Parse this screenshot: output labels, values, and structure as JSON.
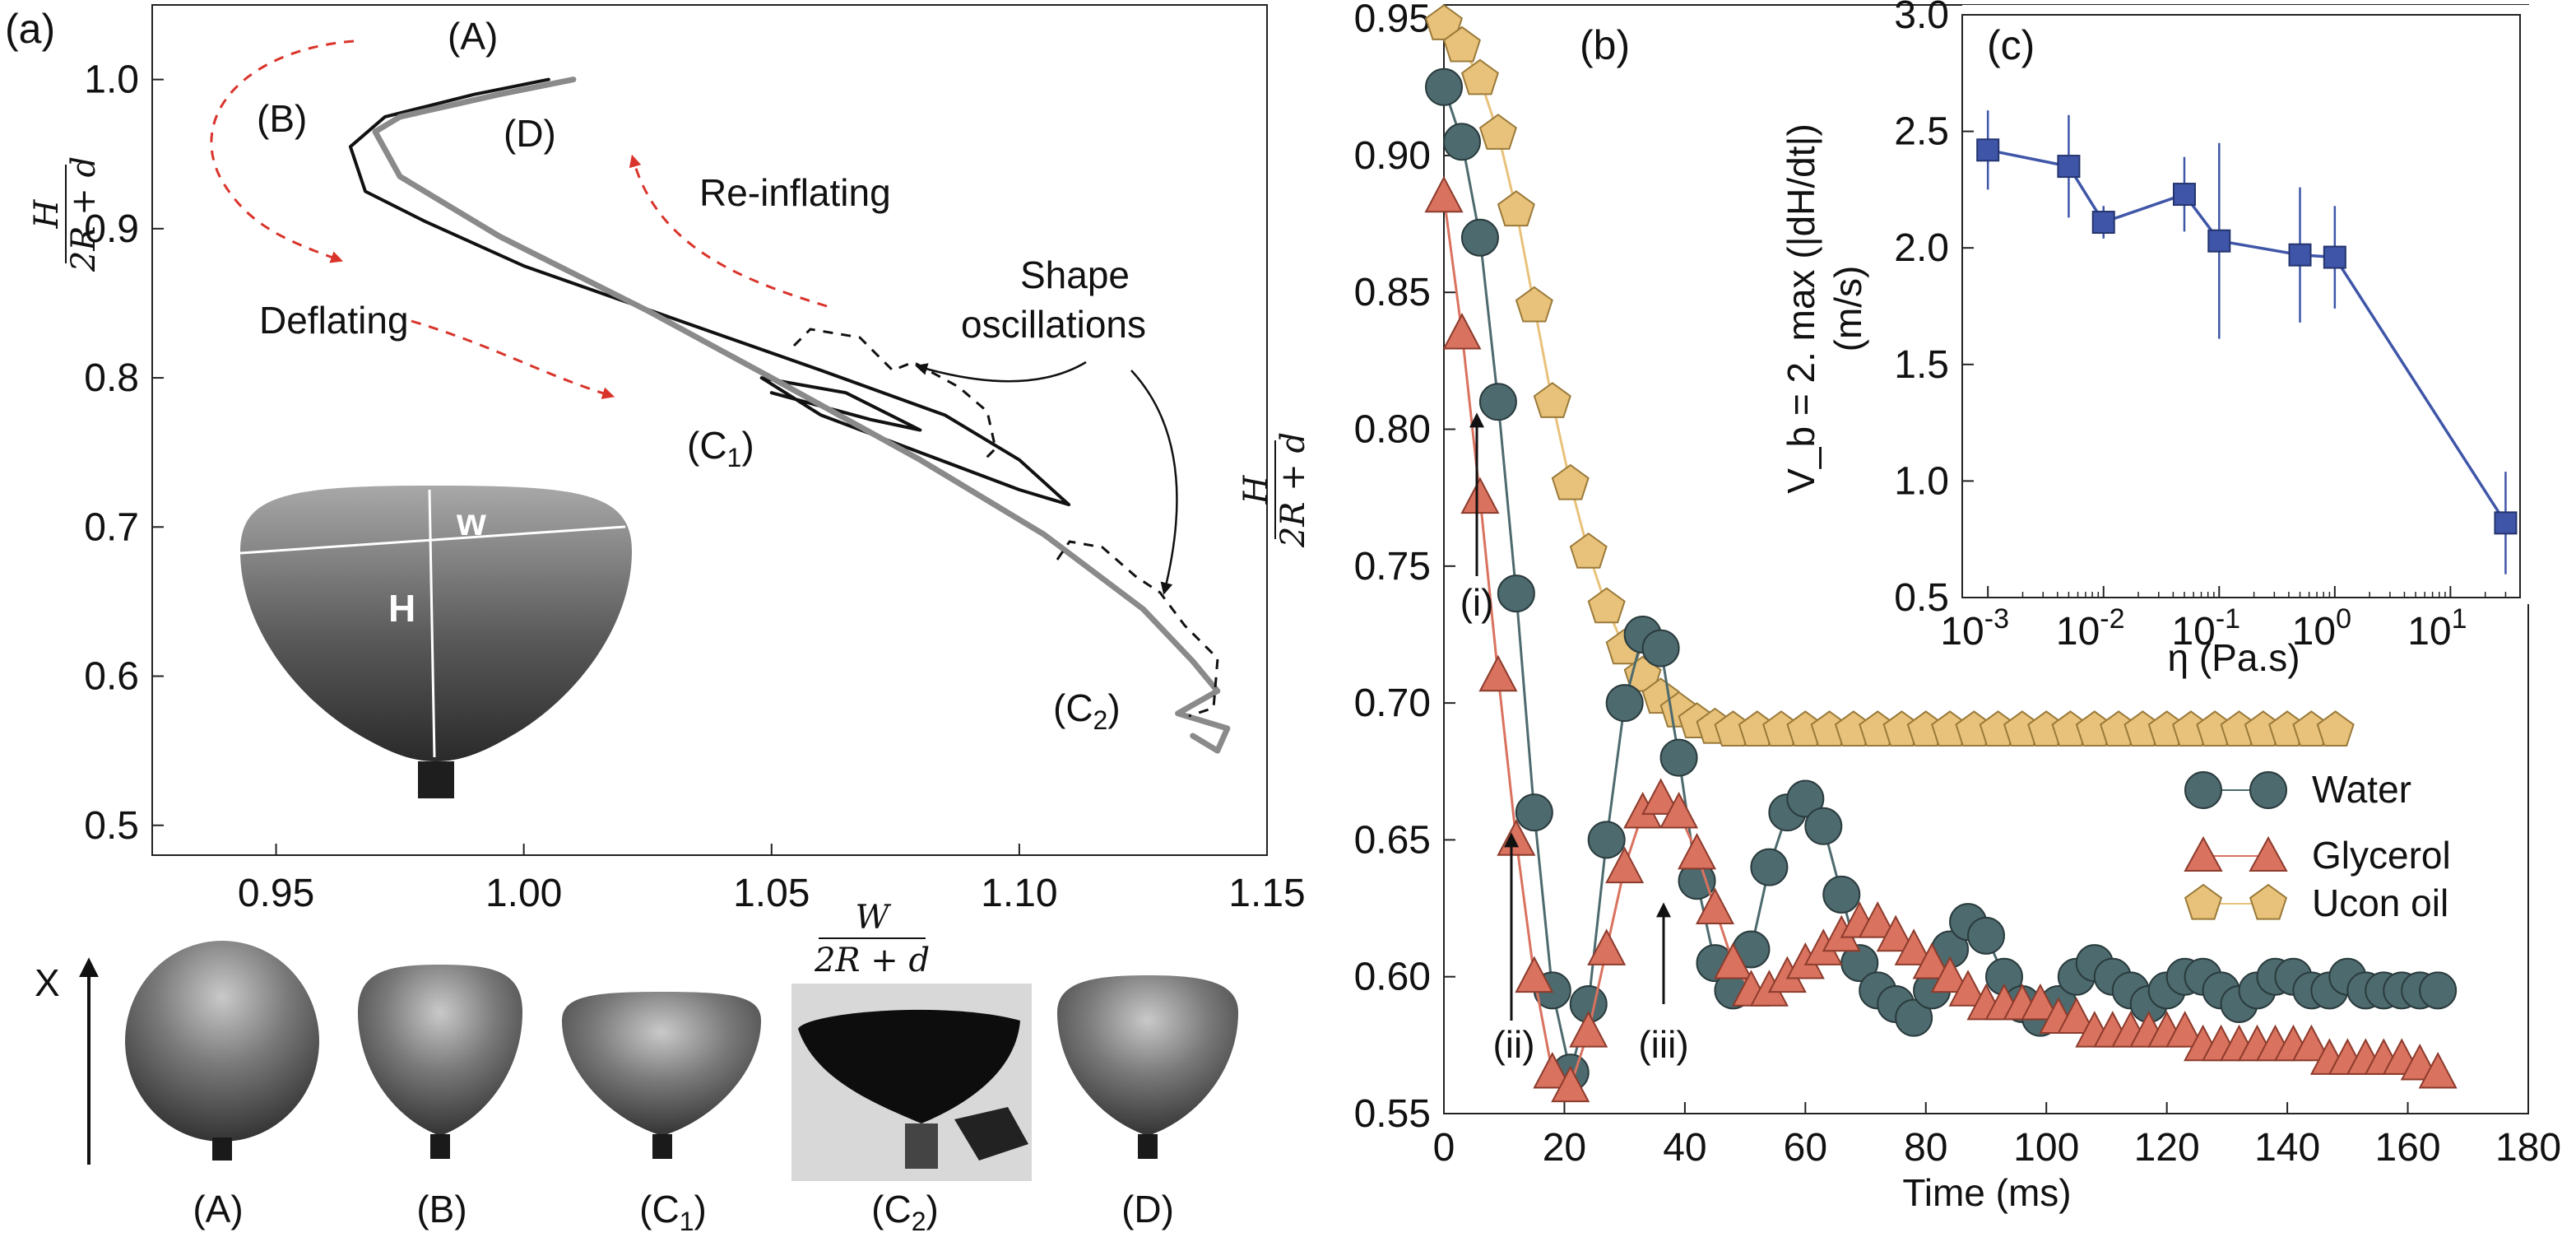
{
  "figure": {
    "panel_a_label": "(a)",
    "panel_b_label": "(b)",
    "panel_c_label": "(c)",
    "bottom_labels": [
      "(A)",
      "(B)",
      "(C1)",
      "(C2)",
      "(D)"
    ],
    "x_arrow_label": "X",
    "ratio_label_W": "W",
    "ratio_label_den": "2R + d"
  },
  "chart_data": [
    {
      "id": "a",
      "type": "line",
      "title": "",
      "xlabel": "W/(2R+d)",
      "ylabel": "H/(2R+d)",
      "xlim": [
        0.925,
        1.15
      ],
      "ylim": [
        0.48,
        1.05
      ],
      "xticks": [
        0.95,
        1.0,
        1.05,
        1.1,
        1.15
      ],
      "xtick_labels": [
        "0.95",
        "1.00",
        "1.05",
        "1.10",
        "1.15"
      ],
      "yticks": [
        0.5,
        0.6,
        0.7,
        0.8,
        0.9,
        1.0
      ],
      "ytick_labels": [
        "0.5",
        "0.6",
        "0.7",
        "0.8",
        "0.9",
        "1.0"
      ],
      "ylabel_num": "H",
      "ylabel_den": "2R + d",
      "annotations": {
        "A": "(A)",
        "B": "(B)",
        "D": "(D)",
        "C1": "(C1)",
        "C2": "(C2)",
        "deflating": "Deflating",
        "reinflating": "Re-inflating",
        "shape_osc_1": "Shape",
        "shape_osc_2": "oscillations",
        "inset_w": "w",
        "inset_H": "H"
      },
      "series": [
        {
          "name": "Water (black)",
          "color": "#111111",
          "x": [
            1.005,
            0.99,
            0.972,
            0.965,
            0.968,
            0.98,
            1.0,
            1.03,
            1.06,
            1.085,
            1.1,
            1.11,
            1.1,
            1.08,
            1.06,
            1.048,
            1.065,
            1.08,
            1.07,
            1.05
          ],
          "y": [
            1.0,
            0.99,
            0.975,
            0.955,
            0.925,
            0.905,
            0.875,
            0.84,
            0.805,
            0.775,
            0.745,
            0.715,
            0.725,
            0.75,
            0.775,
            0.8,
            0.79,
            0.765,
            0.772,
            0.79
          ]
        },
        {
          "name": "Glycerol (gray)",
          "color": "#8a8a8a",
          "x": [
            1.01,
            0.995,
            0.975,
            0.97,
            0.975,
            0.995,
            1.025,
            1.05,
            1.08,
            1.105,
            1.125,
            1.135,
            1.14,
            1.132,
            1.142,
            1.14,
            1.135
          ],
          "y": [
            1.0,
            0.99,
            0.975,
            0.965,
            0.935,
            0.895,
            0.845,
            0.8,
            0.745,
            0.695,
            0.645,
            0.61,
            0.59,
            0.575,
            0.565,
            0.55,
            0.56
          ]
        }
      ]
    },
    {
      "id": "b",
      "type": "line",
      "title": "",
      "xlabel": "Time (ms)",
      "ylabel": "H/(2R+d)",
      "xlim": [
        0,
        180
      ],
      "ylim": [
        0.55,
        0.955
      ],
      "xticks": [
        0,
        20,
        40,
        60,
        80,
        100,
        120,
        140,
        160,
        180
      ],
      "xtick_labels": [
        "0",
        "20",
        "40",
        "60",
        "80",
        "100",
        "120",
        "140",
        "160",
        "180"
      ],
      "yticks": [
        0.55,
        0.6,
        0.65,
        0.7,
        0.75,
        0.8,
        0.85,
        0.9,
        0.95
      ],
      "ytick_labels": [
        "0.55",
        "0.60",
        "0.65",
        "0.70",
        "0.75",
        "0.80",
        "0.85",
        "0.90",
        "0.95"
      ],
      "ylabel_num": "H",
      "ylabel_den": "2R + d",
      "legend": [
        "Water",
        "Glycerol",
        "Ucon oil"
      ],
      "arrow_labels": [
        "(i)",
        "(ii)",
        "(iii)"
      ],
      "series": [
        {
          "name": "Water",
          "marker": "circle",
          "color": "#4d6a6e",
          "x": [
            0,
            3,
            6,
            9,
            12,
            15,
            18,
            21,
            24,
            27,
            30,
            33,
            36,
            39,
            42,
            45,
            48,
            51,
            54,
            57,
            60,
            63,
            66,
            69,
            72,
            75,
            78,
            81,
            84,
            87,
            90,
            93,
            96,
            99,
            102,
            105,
            108,
            111,
            114,
            117,
            120,
            123,
            126,
            129,
            132,
            135,
            138,
            141,
            144,
            147,
            150,
            153,
            156,
            159,
            162,
            165
          ],
          "y": [
            0.925,
            0.905,
            0.87,
            0.81,
            0.74,
            0.66,
            0.595,
            0.565,
            0.59,
            0.65,
            0.7,
            0.725,
            0.72,
            0.68,
            0.635,
            0.605,
            0.595,
            0.61,
            0.64,
            0.66,
            0.665,
            0.655,
            0.63,
            0.605,
            0.595,
            0.59,
            0.585,
            0.595,
            0.61,
            0.62,
            0.615,
            0.6,
            0.59,
            0.585,
            0.59,
            0.6,
            0.605,
            0.6,
            0.595,
            0.59,
            0.595,
            0.6,
            0.6,
            0.595,
            0.59,
            0.595,
            0.6,
            0.6,
            0.595,
            0.595,
            0.6,
            0.595,
            0.595,
            0.595,
            0.595,
            0.595
          ]
        },
        {
          "name": "Glycerol",
          "marker": "triangle",
          "color": "#d9725f",
          "x": [
            0,
            3,
            6,
            9,
            12,
            15,
            18,
            21,
            24,
            27,
            30,
            33,
            36,
            39,
            42,
            45,
            48,
            51,
            54,
            57,
            60,
            63,
            66,
            69,
            72,
            75,
            78,
            81,
            84,
            87,
            90,
            93,
            96,
            99,
            102,
            105,
            108,
            111,
            114,
            117,
            120,
            123,
            126,
            129,
            132,
            135,
            138,
            141,
            144,
            147,
            150,
            153,
            156,
            159,
            162,
            165
          ],
          "y": [
            0.885,
            0.835,
            0.775,
            0.71,
            0.65,
            0.6,
            0.565,
            0.56,
            0.58,
            0.61,
            0.64,
            0.66,
            0.665,
            0.66,
            0.645,
            0.625,
            0.605,
            0.595,
            0.595,
            0.6,
            0.605,
            0.61,
            0.615,
            0.62,
            0.62,
            0.615,
            0.61,
            0.605,
            0.6,
            0.595,
            0.59,
            0.59,
            0.59,
            0.59,
            0.585,
            0.585,
            0.58,
            0.58,
            0.58,
            0.58,
            0.58,
            0.58,
            0.575,
            0.575,
            0.575,
            0.575,
            0.575,
            0.575,
            0.575,
            0.57,
            0.57,
            0.57,
            0.57,
            0.57,
            0.568,
            0.565
          ]
        },
        {
          "name": "Ucon oil",
          "marker": "pentagon",
          "color": "#e8c27a",
          "x": [
            0,
            3,
            6,
            9,
            12,
            15,
            18,
            21,
            24,
            27,
            30,
            33,
            36,
            39,
            42,
            45,
            48,
            52,
            56,
            60,
            64,
            68,
            72,
            76,
            80,
            84,
            88,
            92,
            96,
            100,
            104,
            108,
            112,
            116,
            120,
            124,
            128,
            132,
            136,
            140,
            144,
            148
          ],
          "y": [
            0.948,
            0.94,
            0.928,
            0.908,
            0.88,
            0.845,
            0.81,
            0.78,
            0.755,
            0.735,
            0.72,
            0.71,
            0.702,
            0.697,
            0.693,
            0.691,
            0.69,
            0.69,
            0.69,
            0.69,
            0.69,
            0.69,
            0.69,
            0.69,
            0.69,
            0.69,
            0.69,
            0.69,
            0.69,
            0.69,
            0.69,
            0.69,
            0.69,
            0.69,
            0.69,
            0.69,
            0.69,
            0.69,
            0.69,
            0.69,
            0.69,
            0.69
          ]
        }
      ]
    },
    {
      "id": "c",
      "type": "line",
      "title": "",
      "xlabel": "η (Pa.s)",
      "ylabel": "V_b = 2. max(|dH/dt|) (m/s)",
      "ylabel_line1": "V_b = 2. max (|dH/dt|)",
      "ylabel_line2": "(m/s)",
      "xscale": "log",
      "xlim": [
        0.0006,
        40
      ],
      "ylim": [
        0.5,
        3.0
      ],
      "xticks": [
        0.001,
        0.01,
        0.1,
        1,
        10
      ],
      "xtick_labels": [
        "10-3",
        "10-2",
        "10-1",
        "100",
        "101"
      ],
      "yticks": [
        0.5,
        1.0,
        1.5,
        2.0,
        2.5,
        3.0
      ],
      "ytick_labels": [
        "0.5",
        "1.0",
        "1.5",
        "2.0",
        "2.5",
        "3.0"
      ],
      "series": [
        {
          "name": "V_b",
          "marker": "square",
          "color": "#3f56a8",
          "x": [
            0.001,
            0.005,
            0.01,
            0.05,
            0.1,
            0.5,
            1,
            30
          ],
          "y": [
            2.42,
            2.35,
            2.11,
            2.23,
            2.03,
            1.97,
            1.96,
            0.82
          ],
          "err": [
            0.17,
            0.22,
            0.07,
            0.16,
            0.42,
            0.29,
            0.22,
            0.22
          ]
        }
      ]
    }
  ]
}
